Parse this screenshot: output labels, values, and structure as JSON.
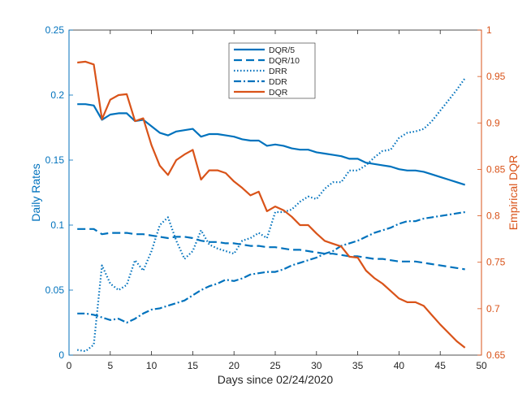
{
  "chart_data": {
    "type": "line",
    "xlabel": "Days since 02/24/2020",
    "ylabel_left": "Daily Rates",
    "ylabel_right": "Empirical DQR",
    "xlim": [
      0,
      50
    ],
    "ylim_left": [
      0,
      0.25
    ],
    "ylim_right": [
      0.65,
      1
    ],
    "xticks": [
      "0",
      "5",
      "10",
      "15",
      "20",
      "25",
      "30",
      "35",
      "40",
      "45",
      "50"
    ],
    "yticks_left": [
      "0",
      "0.05",
      "0.1",
      "0.15",
      "0.2",
      "0.25"
    ],
    "yticks_right": [
      "0.65",
      "0.7",
      "0.75",
      "0.8",
      "0.85",
      "0.9",
      "0.95",
      "1"
    ],
    "legend_position": "top-center",
    "colors": {
      "left_axis": "#0072BD",
      "right_axis": "#D95319",
      "blue": "#0072BD",
      "orange": "#D95319"
    },
    "x": [
      1,
      2,
      3,
      4,
      5,
      6,
      7,
      8,
      9,
      10,
      11,
      12,
      13,
      14,
      15,
      16,
      17,
      18,
      19,
      20,
      21,
      22,
      23,
      24,
      25,
      26,
      27,
      28,
      29,
      30,
      31,
      32,
      33,
      34,
      35,
      36,
      37,
      38,
      39,
      40,
      41,
      42,
      43,
      44,
      45,
      46,
      47,
      48
    ],
    "series": [
      {
        "name": "DQR/5",
        "axis": "left",
        "style": "solid",
        "values": [
          0.193,
          0.193,
          0.192,
          0.181,
          0.185,
          0.186,
          0.186,
          0.18,
          0.181,
          0.176,
          0.171,
          0.169,
          0.172,
          0.173,
          0.174,
          0.168,
          0.17,
          0.17,
          0.169,
          0.168,
          0.166,
          0.165,
          0.165,
          0.161,
          0.162,
          0.161,
          0.159,
          0.158,
          0.158,
          0.156,
          0.155,
          0.154,
          0.153,
          0.151,
          0.151,
          0.148,
          0.147,
          0.146,
          0.145,
          0.143,
          0.142,
          0.142,
          0.141,
          0.139,
          0.137,
          0.135,
          0.133,
          0.131
        ]
      },
      {
        "name": "DQR/10",
        "axis": "left",
        "style": "dashed",
        "values": [
          0.097,
          0.097,
          0.097,
          0.093,
          0.094,
          0.094,
          0.094,
          0.093,
          0.093,
          0.092,
          0.091,
          0.09,
          0.091,
          0.091,
          0.09,
          0.088,
          0.087,
          0.087,
          0.086,
          0.086,
          0.085,
          0.084,
          0.084,
          0.083,
          0.083,
          0.082,
          0.081,
          0.081,
          0.08,
          0.079,
          0.078,
          0.078,
          0.077,
          0.076,
          0.076,
          0.075,
          0.074,
          0.074,
          0.073,
          0.072,
          0.072,
          0.072,
          0.071,
          0.07,
          0.069,
          0.068,
          0.067,
          0.066
        ]
      },
      {
        "name": "DRR",
        "axis": "left",
        "style": "dotted",
        "values": [
          0.004,
          0.003,
          0.008,
          0.069,
          0.055,
          0.05,
          0.054,
          0.073,
          0.065,
          0.08,
          0.1,
          0.106,
          0.088,
          0.074,
          0.08,
          0.096,
          0.085,
          0.082,
          0.08,
          0.078,
          0.088,
          0.09,
          0.094,
          0.09,
          0.11,
          0.11,
          0.112,
          0.118,
          0.122,
          0.12,
          0.128,
          0.133,
          0.133,
          0.142,
          0.142,
          0.146,
          0.152,
          0.157,
          0.158,
          0.167,
          0.171,
          0.172,
          0.174,
          0.18,
          0.188,
          0.196,
          0.204,
          0.213
        ]
      },
      {
        "name": "DDR",
        "axis": "left",
        "style": "dashdot",
        "values": [
          0.032,
          0.032,
          0.031,
          0.029,
          0.027,
          0.028,
          0.025,
          0.028,
          0.032,
          0.035,
          0.036,
          0.038,
          0.04,
          0.042,
          0.046,
          0.05,
          0.053,
          0.055,
          0.058,
          0.057,
          0.059,
          0.062,
          0.063,
          0.064,
          0.064,
          0.066,
          0.069,
          0.071,
          0.073,
          0.075,
          0.078,
          0.08,
          0.084,
          0.086,
          0.088,
          0.091,
          0.094,
          0.096,
          0.098,
          0.101,
          0.103,
          0.103,
          0.105,
          0.106,
          0.107,
          0.108,
          0.109,
          0.11
        ]
      },
      {
        "name": "DQR",
        "axis": "right",
        "style": "solid",
        "values": [
          0.965,
          0.966,
          0.963,
          0.904,
          0.925,
          0.93,
          0.931,
          0.902,
          0.905,
          0.876,
          0.854,
          0.844,
          0.86,
          0.866,
          0.871,
          0.839,
          0.849,
          0.849,
          0.846,
          0.837,
          0.83,
          0.822,
          0.826,
          0.805,
          0.81,
          0.806,
          0.799,
          0.79,
          0.79,
          0.781,
          0.773,
          0.77,
          0.767,
          0.756,
          0.755,
          0.741,
          0.733,
          0.727,
          0.719,
          0.711,
          0.707,
          0.707,
          0.703,
          0.693,
          0.683,
          0.674,
          0.665,
          0.658
        ]
      }
    ]
  }
}
